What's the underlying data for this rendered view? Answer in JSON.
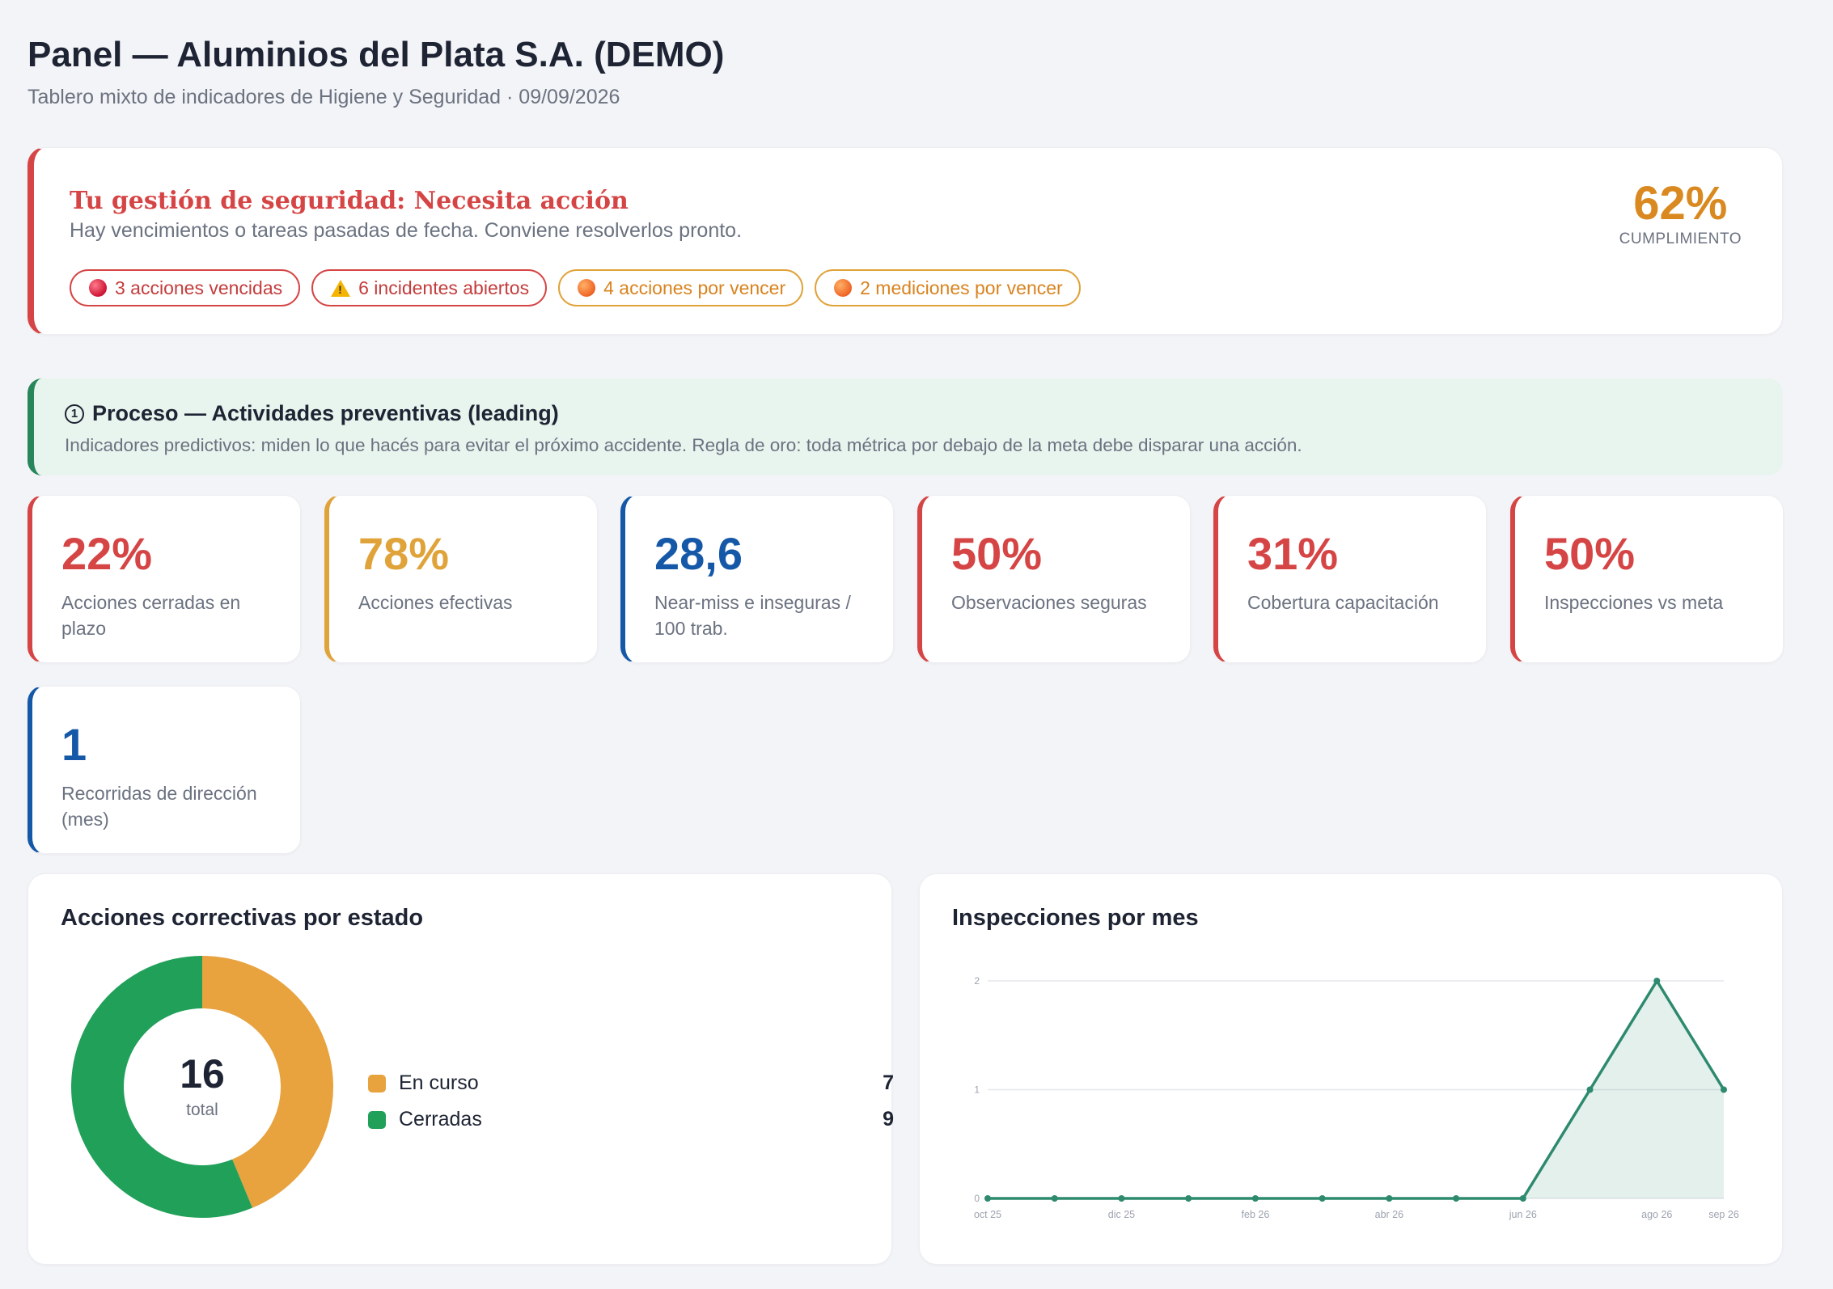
{
  "header": {
    "title": "Panel — Aluminios del Plata S.A. (DEMO)",
    "subtitle": "Tablero mixto de indicadores de Higiene y Seguridad · 09/09/2026"
  },
  "status": {
    "title": "Tu gestión de seguridad: Necesita acción",
    "description": "Hay vencimientos o tareas pasadas de fecha. Conviene resolverlos pronto.",
    "chips": [
      {
        "label": "3 acciones vencidas",
        "icon": "red-circle-icon",
        "tone": "red"
      },
      {
        "label": "6 incidentes abiertos",
        "icon": "warning-icon",
        "tone": "red"
      },
      {
        "label": "4 acciones por vencer",
        "icon": "orange-circle-icon",
        "tone": "orange"
      },
      {
        "label": "2 mediciones por vencer",
        "icon": "orange-circle-icon",
        "tone": "orange"
      }
    ],
    "score_value": "62%",
    "score_label": "CUMPLIMIENTO"
  },
  "section": {
    "number": "1",
    "title": "Proceso — Actividades preventivas (leading)",
    "description": "Indicadores predictivos: miden lo que hacés para evitar el próximo accidente. Regla de oro: toda métrica por debajo de la meta debe disparar una acción."
  },
  "kpis": [
    {
      "value": "22%",
      "label": "Acciones cerradas en plazo",
      "tone": "red"
    },
    {
      "value": "78%",
      "label": "Acciones efectivas",
      "tone": "orange"
    },
    {
      "value": "28,6",
      "label": "Near-miss e inseguras / 100 trab.",
      "tone": "blue"
    },
    {
      "value": "50%",
      "label": "Observaciones seguras",
      "tone": "red"
    },
    {
      "value": "31%",
      "label": "Cobertura capacitación",
      "tone": "red"
    },
    {
      "value": "50%",
      "label": "Inspecciones vs meta",
      "tone": "red"
    },
    {
      "value": "1",
      "label": "Recorridas de dirección (mes)",
      "tone": "blue"
    }
  ],
  "colors": {
    "red": "#d64545",
    "orange": "#e0a33a",
    "blue": "#1558a8",
    "green": "#21a05a",
    "line": "#2e8a6e"
  },
  "donut_panel": {
    "title": "Acciones correctivas por estado",
    "total": "16",
    "total_label": "total"
  },
  "line_panel": {
    "title": "Inspecciones por mes"
  },
  "chart_data": [
    {
      "type": "pie",
      "title": "Acciones correctivas por estado",
      "categories": [
        "En curso",
        "Cerradas"
      ],
      "values": [
        7,
        9
      ],
      "colors": [
        "#e8a23e",
        "#21a05a"
      ]
    },
    {
      "type": "area",
      "title": "Inspecciones por mes",
      "x": [
        "oct 25",
        "nov 25",
        "dic 25",
        "ene 26",
        "feb 26",
        "mar 26",
        "abr 26",
        "may 26",
        "jun 26",
        "jul 26",
        "ago 26",
        "sep 26"
      ],
      "x_tick_labels": [
        "oct 25",
        "dic 25",
        "feb 26",
        "abr 26",
        "jun 26",
        "ago 26",
        "sep 26"
      ],
      "values": [
        0,
        0,
        0,
        0,
        0,
        0,
        0,
        0,
        0,
        1,
        2,
        1
      ],
      "ylim": [
        0,
        2
      ],
      "y_ticks": [
        0,
        1,
        2
      ],
      "grid": true
    }
  ]
}
